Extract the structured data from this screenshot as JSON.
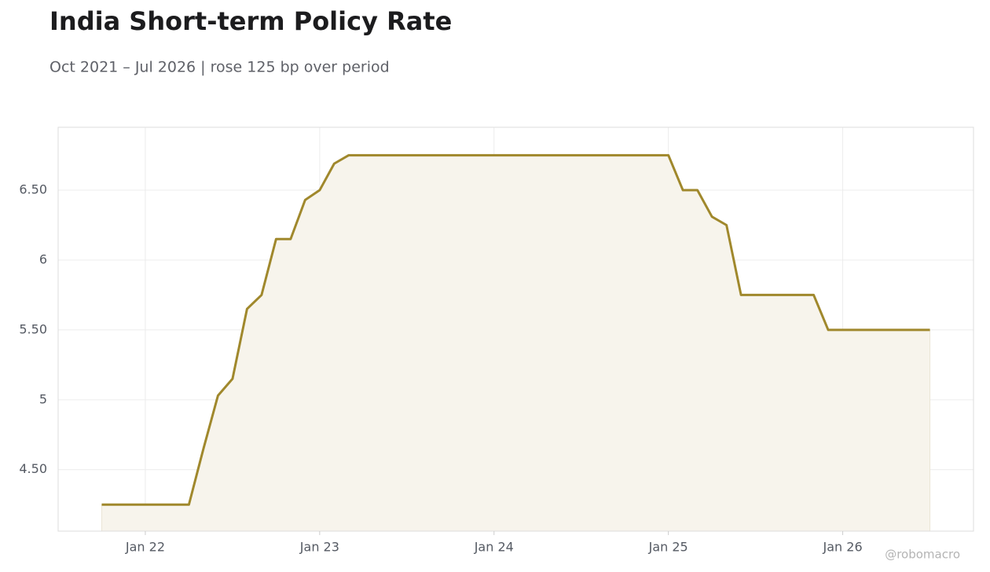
{
  "chart_data": {
    "type": "line",
    "title": "India Short-term Policy Rate",
    "subtitle": "Oct 2021 – Jul 2026 | rose 125 bp over period",
    "watermark": "@robomacro",
    "x": [
      "2021-10",
      "2021-11",
      "2021-12",
      "2022-01",
      "2022-02",
      "2022-03",
      "2022-04",
      "2022-05",
      "2022-06",
      "2022-07",
      "2022-08",
      "2022-09",
      "2022-10",
      "2022-11",
      "2022-12",
      "2023-01",
      "2023-02",
      "2023-03",
      "2023-04",
      "2023-05",
      "2023-06",
      "2023-07",
      "2023-08",
      "2023-09",
      "2023-10",
      "2023-11",
      "2023-12",
      "2024-01",
      "2024-02",
      "2024-03",
      "2024-04",
      "2024-05",
      "2024-06",
      "2024-07",
      "2024-08",
      "2024-09",
      "2024-10",
      "2024-11",
      "2024-12",
      "2025-01",
      "2025-02",
      "2025-03",
      "2025-04",
      "2025-05",
      "2025-06",
      "2025-07",
      "2025-08",
      "2025-09",
      "2025-10",
      "2025-11",
      "2025-12",
      "2026-01",
      "2026-02",
      "2026-03",
      "2026-04",
      "2026-05",
      "2026-06",
      "2026-07"
    ],
    "series": [
      {
        "name": "Policy rate",
        "color": "#a0882c",
        "values": [
          4.25,
          4.25,
          4.25,
          4.25,
          4.25,
          4.25,
          4.25,
          4.65,
          5.03,
          5.15,
          5.65,
          5.75,
          6.15,
          6.15,
          6.43,
          6.5,
          6.69,
          6.75,
          6.75,
          6.75,
          6.75,
          6.75,
          6.75,
          6.75,
          6.75,
          6.75,
          6.75,
          6.75,
          6.75,
          6.75,
          6.75,
          6.75,
          6.75,
          6.75,
          6.75,
          6.75,
          6.75,
          6.75,
          6.75,
          6.75,
          6.5,
          6.5,
          6.31,
          6.25,
          5.75,
          5.75,
          5.75,
          5.75,
          5.75,
          5.75,
          5.5,
          5.5,
          5.5,
          5.5,
          5.5,
          5.5,
          5.5,
          5.5
        ]
      }
    ],
    "area_color": "#f7f4ec",
    "xlim": [
      "2021-07",
      "2026-10"
    ],
    "xticks": [
      {
        "value": "2022-01",
        "label": "Jan 22"
      },
      {
        "value": "2023-01",
        "label": "Jan 23"
      },
      {
        "value": "2024-01",
        "label": "Jan 24"
      },
      {
        "value": "2025-01",
        "label": "Jan 25"
      },
      {
        "value": "2026-01",
        "label": "Jan 26"
      }
    ],
    "ylim": [
      4.06,
      6.95
    ],
    "yticks": [
      {
        "value": 4.5,
        "label": "4.50"
      },
      5,
      {
        "value": 5.5,
        "label": "5.50"
      },
      6,
      {
        "value": 6.5,
        "label": "6.50"
      }
    ],
    "grid": true
  }
}
